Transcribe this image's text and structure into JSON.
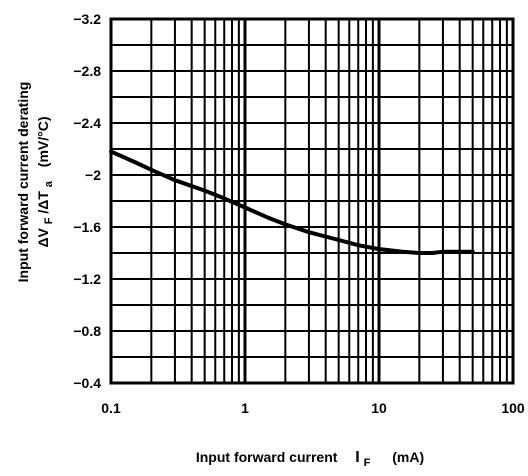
{
  "chart_data": {
    "type": "line",
    "x_scale": "log",
    "y_inverted": true,
    "xlim": [
      0.1,
      100
    ],
    "ylim": [
      -0.4,
      -3.2
    ],
    "x_ticks": [
      0.1,
      1,
      10,
      100
    ],
    "x_tick_labels": [
      "0.1",
      "1",
      "10",
      "100"
    ],
    "y_ticks": [
      -0.4,
      -0.8,
      -1.2,
      -1.6,
      -2,
      -2.4,
      -2.8,
      -3.2
    ],
    "y_tick_labels": [
      "−0.4",
      "−0.8",
      "−1.2",
      "−1.6",
      "−2",
      "−2.4",
      "−2.8",
      "−3.2"
    ],
    "y_minor_step": 0.2,
    "grid": true,
    "xlabel": {
      "main": "Input forward current",
      "symbol": "I",
      "subscript": "F",
      "unit": "(mA)"
    },
    "ylabel": {
      "line1": "Input forward current derating",
      "line2_symbol": "ΔV",
      "line2_sub1": "F",
      "line2_mid": "/ΔT",
      "line2_sub2": "a",
      "line2_unit": "(mV/°C)"
    },
    "series": [
      {
        "x": [
          0.1,
          0.15,
          0.2,
          0.3,
          0.5,
          0.7,
          1,
          1.5,
          2,
          3,
          5,
          7,
          10,
          15,
          20,
          25,
          30,
          50
        ],
        "y": [
          -2.18,
          -2.1,
          -2.04,
          -1.96,
          -1.88,
          -1.82,
          -1.75,
          -1.67,
          -1.62,
          -1.56,
          -1.5,
          -1.46,
          -1.43,
          -1.41,
          -1.4,
          -1.4,
          -1.41,
          -1.41
        ]
      }
    ]
  }
}
